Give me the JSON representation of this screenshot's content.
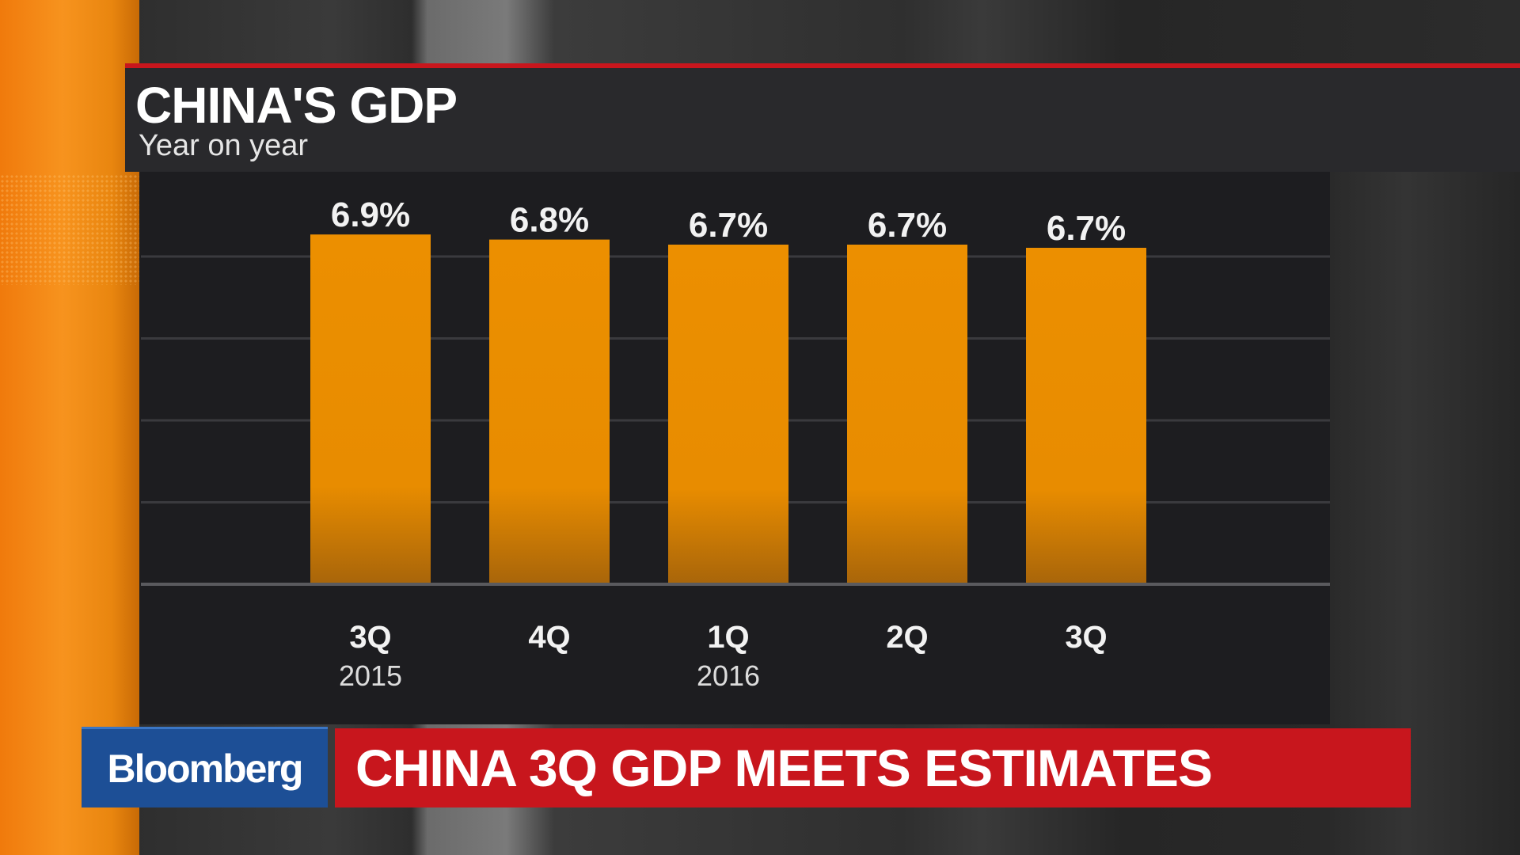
{
  "chart_data": {
    "type": "bar",
    "title": "CHINA'S GDP",
    "subtitle": "Year on year",
    "categories": [
      "3Q",
      "4Q",
      "1Q",
      "2Q",
      "3Q"
    ],
    "year_labels": [
      "2015",
      "",
      "2016",
      "",
      ""
    ],
    "values": [
      6.9,
      6.8,
      6.7,
      6.7,
      6.7
    ],
    "data_labels": [
      "6.9%",
      "6.8%",
      "6.7%",
      "6.7%",
      "6.7%"
    ],
    "ylim": [
      0,
      7
    ],
    "grid": true,
    "bar_color": "#e88c00"
  },
  "broadcast": {
    "logo": "Bloomberg",
    "headline": "CHINA 3Q GDP MEETS ESTIMATES"
  },
  "colors": {
    "accent_red": "#c8161d",
    "logo_blue": "#1d4f96",
    "orange_panel": "#f7931e"
  }
}
